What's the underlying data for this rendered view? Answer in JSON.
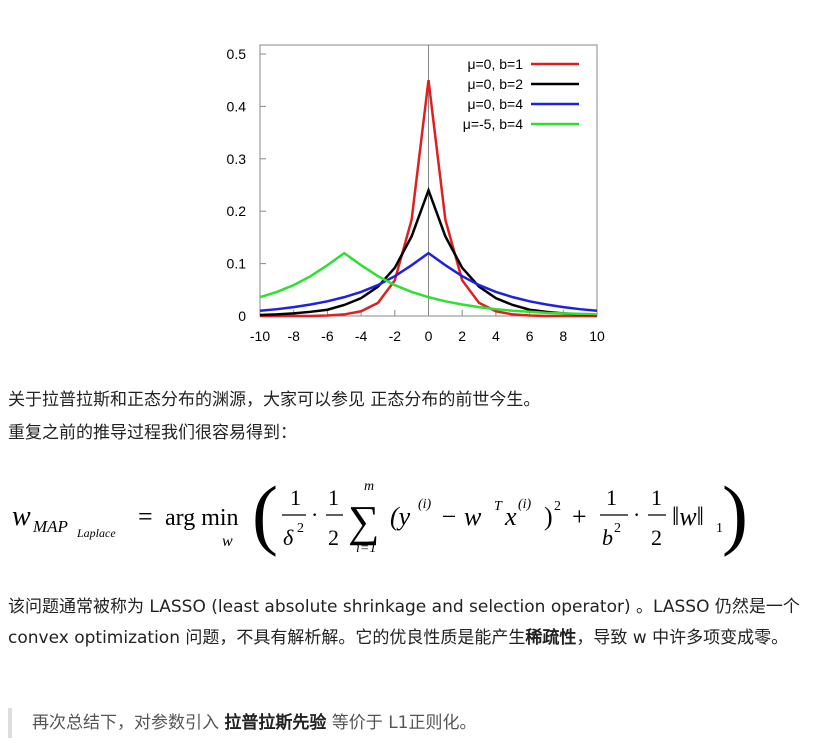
{
  "chart_data": {
    "type": "line",
    "x": [
      -10,
      -9,
      -8,
      -7,
      -6,
      -5,
      -4,
      -3,
      -2,
      -1,
      0,
      1,
      2,
      3,
      4,
      5,
      6,
      7,
      8,
      9,
      10
    ],
    "series": [
      {
        "name": "μ=0, b=1",
        "color": "#e02020",
        "values": [
          0,
          0,
          0,
          0,
          0.001,
          0.003,
          0.009,
          0.025,
          0.068,
          0.184,
          0.45,
          0.184,
          0.068,
          0.025,
          0.009,
          0.003,
          0.001,
          0,
          0,
          0,
          0
        ]
      },
      {
        "name": "μ=0, b=2",
        "color": "#000000",
        "values": [
          0.002,
          0.003,
          0.005,
          0.008,
          0.012,
          0.021,
          0.034,
          0.056,
          0.092,
          0.152,
          0.24,
          0.152,
          0.092,
          0.056,
          0.034,
          0.021,
          0.012,
          0.008,
          0.005,
          0.003,
          0.002
        ]
      },
      {
        "name": "μ=0, b=4",
        "color": "#2020e0",
        "values": [
          0.01,
          0.013,
          0.017,
          0.022,
          0.028,
          0.036,
          0.046,
          0.059,
          0.076,
          0.097,
          0.12,
          0.097,
          0.076,
          0.059,
          0.046,
          0.036,
          0.028,
          0.022,
          0.017,
          0.013,
          0.01
        ]
      },
      {
        "name": "μ=-5, b=4",
        "color": "#30e030",
        "values": [
          0.036,
          0.046,
          0.059,
          0.076,
          0.097,
          0.12,
          0.097,
          0.076,
          0.059,
          0.046,
          0.036,
          0.028,
          0.022,
          0.017,
          0.013,
          0.01,
          0.008,
          0.006,
          0.005,
          0.004,
          0.003
        ]
      }
    ],
    "xlim": [
      -10,
      10
    ],
    "xticks": [
      -10,
      -8,
      -6,
      -4,
      -2,
      0,
      2,
      4,
      6,
      8,
      10
    ],
    "ylim": [
      0,
      0.5
    ],
    "yticks": [
      0,
      0.1,
      0.2,
      0.3,
      0.4,
      0.5
    ],
    "legend": "top-right"
  },
  "document": {
    "line1": "关于拉普拉斯和正态分布的渊源，大家可以参见 正态分布的前世今生。",
    "line2": "重复之前的推导过程我们很容易得到：",
    "formula": [
      "w",
      "MAP",
      "Laplace",
      "=",
      "arg min",
      "w",
      "(",
      "1",
      "δ",
      "2",
      "·",
      "1",
      "2",
      "∑",
      "m",
      "i=1",
      "(y",
      "(i)",
      "− w",
      "T",
      "x",
      "(i)",
      ")",
      "2",
      "+",
      "1",
      "b",
      "2",
      "·",
      "1",
      "2",
      "‖w‖",
      "1",
      ")"
    ],
    "para": {
      "before": "该问题通常被称为 LASSO (least absolute shrinkage and selection operator) 。LASSO 仍然是一个 convex optimization 问题，不具有解析解。它的优良性质是能产生",
      "bold": "稀疏性",
      "after": "，导致 w 中许多项变成零。"
    },
    "quote": {
      "before": "再次总结下，对参数引入 ",
      "bold": "拉普拉斯先验",
      "after": " 等价于 L1正则化。"
    }
  }
}
